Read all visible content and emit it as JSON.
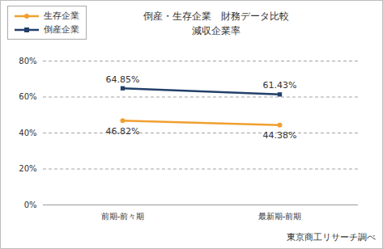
{
  "chart_data": {
    "type": "line",
    "title": "倒産・生存企業　財務データ比較",
    "subtitle": "減収企業率",
    "source": "東京商工リサーチ調べ",
    "categories": [
      "前期-前々期",
      "最新期-前期"
    ],
    "series": [
      {
        "name": "生存企業",
        "color": "#f0a030",
        "marker": "circle",
        "values": [
          46.82,
          44.38
        ],
        "value_labels": [
          "46.82%",
          "44.38%"
        ]
      },
      {
        "name": "倒産企業",
        "color": "#22406a",
        "marker": "square",
        "values": [
          64.85,
          61.43
        ],
        "value_labels": [
          "64.85%",
          "61.43%"
        ]
      }
    ],
    "ylim": [
      0,
      80
    ],
    "yticks": [
      {
        "value": 0,
        "label": "0%"
      },
      {
        "value": 20,
        "label": "20%"
      },
      {
        "value": 40,
        "label": "40%"
      },
      {
        "value": 60,
        "label": "60%"
      },
      {
        "value": 80,
        "label": "80%"
      }
    ],
    "grid": true,
    "legend": "top-left",
    "data_labels": true
  }
}
